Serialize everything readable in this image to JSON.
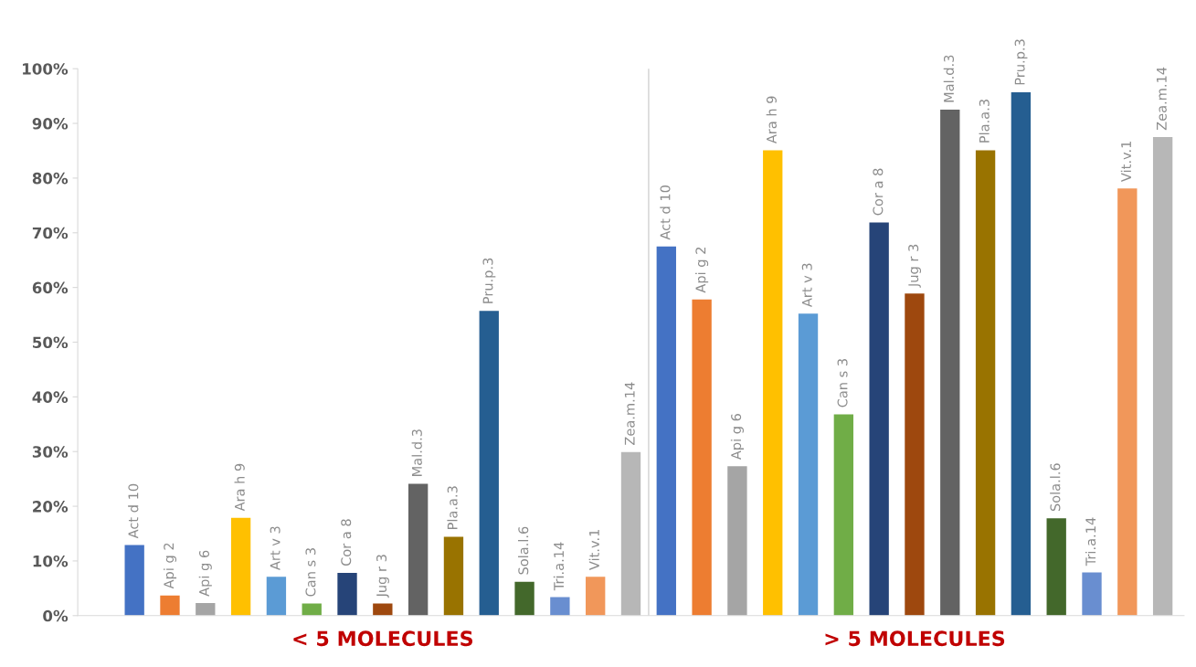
{
  "chart_data": {
    "type": "bar",
    "categories": [
      "Act d 10",
      "Api g 2",
      "Api g 6",
      "Ara h 9",
      "Art v 3",
      "Can s 3",
      "Cor a 8",
      "Jug r 3",
      "Mal.d.3",
      "Pla.a.3",
      "Pru.p.3",
      "Sola.l.6",
      "Tri.a.14",
      "Vit.v.1",
      "Zea.m.14",
      "Act d 10",
      "Api g 2",
      "Api g 6",
      "Ara h 9",
      "Art v 3",
      "Can s 3",
      "Cor a 8",
      "Jug r 3",
      "Mal.d.3",
      "Pla.a.3",
      "Pru.p.3",
      "Sola.l.6",
      "Tri.a.14",
      "Vit.v.1",
      "Zea.m.14"
    ],
    "values": [
      12.9,
      3.7,
      2.3,
      17.9,
      7.1,
      2.2,
      7.8,
      2.2,
      24.1,
      14.4,
      55.7,
      6.2,
      3.4,
      7.1,
      29.9,
      67.5,
      57.8,
      27.3,
      85.1,
      55.2,
      36.8,
      71.9,
      58.9,
      92.5,
      85.1,
      95.7,
      17.8,
      7.9,
      78.1,
      87.5
    ],
    "colors": [
      "#4472c4",
      "#ed7d31",
      "#a5a5a5",
      "#ffc000",
      "#5b9bd5",
      "#70ad47",
      "#264478",
      "#9e480e",
      "#636363",
      "#997300",
      "#255e91",
      "#43682b",
      "#698ed0",
      "#f1975a",
      "#b7b7b7",
      "#4472c4",
      "#ed7d31",
      "#a5a5a5",
      "#ffc000",
      "#5b9bd5",
      "#70ad47",
      "#264478",
      "#9e480e",
      "#636363",
      "#997300",
      "#255e91",
      "#43682b",
      "#698ed0",
      "#f1975a",
      "#b7b7b7"
    ],
    "ylim": [
      0,
      100
    ],
    "yticks": [
      {
        "value": 0,
        "label": "0%"
      },
      {
        "value": 10,
        "label": "10%"
      },
      {
        "value": 20,
        "label": "20%"
      },
      {
        "value": 30,
        "label": "30%"
      },
      {
        "value": 40,
        "label": "40%"
      },
      {
        "value": 50,
        "label": "50%"
      },
      {
        "value": 60,
        "label": "60%"
      },
      {
        "value": 70,
        "label": "70%"
      },
      {
        "value": 80,
        "label": "80%"
      },
      {
        "value": 90,
        "label": "90%"
      },
      {
        "value": 100,
        "label": "100%"
      }
    ],
    "annotations": [
      "< 5 MOLECULES",
      "> 5 MOLECULES"
    ],
    "grid": false
  }
}
